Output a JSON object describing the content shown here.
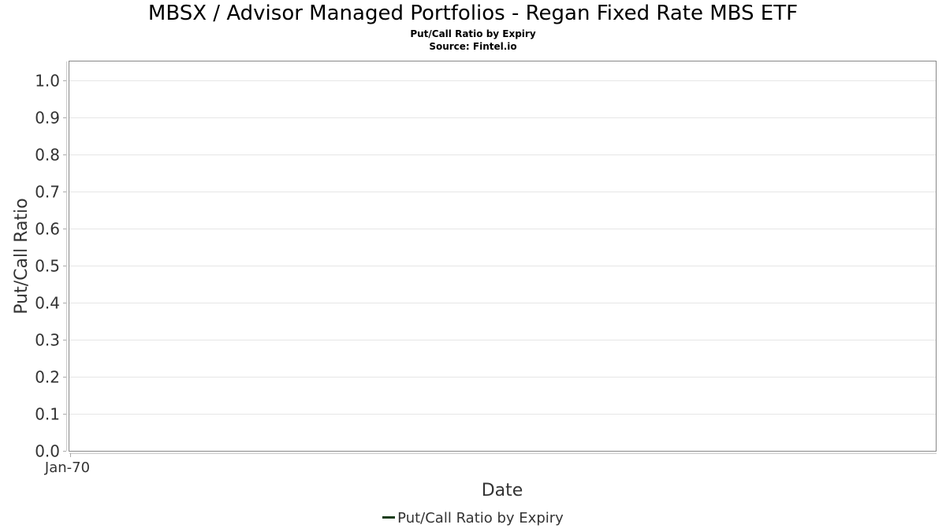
{
  "chart_data": {
    "type": "line",
    "title": "MBSX / Advisor Managed Portfolios - Regan Fixed Rate MBS ETF",
    "subtitles": [
      "Put/Call Ratio by Expiry",
      "Source: Fintel.io"
    ],
    "xlabel": "Date",
    "ylabel": "Put/Call Ratio",
    "x_tick_labels": [
      "Jan-70"
    ],
    "y_ticks": [
      0.0,
      0.1,
      0.2,
      0.3,
      0.4,
      0.5,
      0.6,
      0.7,
      0.8,
      0.9,
      1.0
    ],
    "ylim": [
      0.0,
      1.05
    ],
    "grid": true,
    "legend_position": "bottom",
    "series": [
      {
        "name": "Put/Call Ratio by Expiry",
        "color": "#1a3d1a",
        "x": [],
        "y": []
      }
    ]
  }
}
